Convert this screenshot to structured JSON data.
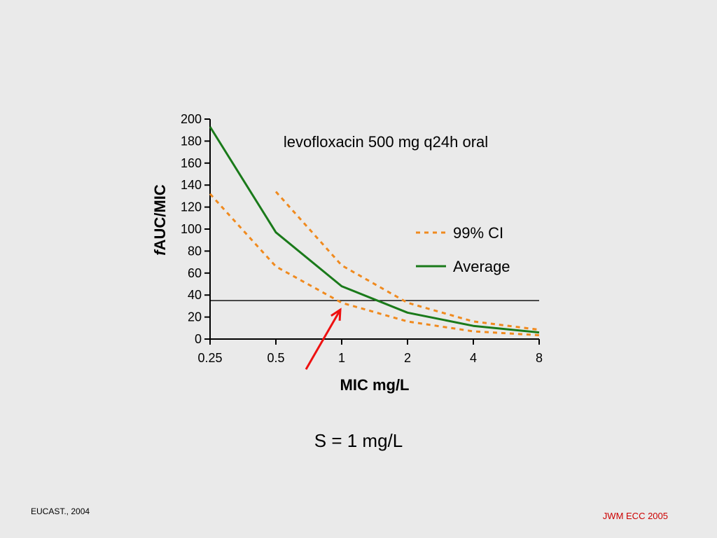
{
  "chart_data": {
    "type": "line",
    "title": "levofloxacin 500 mg q24h oral",
    "xlabel": "MIC mg/L",
    "ylabel_italic": "f",
    "ylabel": "AUC/MIC",
    "x_scale": "log2",
    "categories": [
      "0.25",
      "0.5",
      "1",
      "2",
      "4",
      "8"
    ],
    "x": [
      0.25,
      0.5,
      1,
      2,
      4,
      8
    ],
    "yticks": [
      0,
      20,
      40,
      60,
      80,
      100,
      120,
      140,
      160,
      180,
      200
    ],
    "ylim": [
      0,
      200
    ],
    "grid": false,
    "legend_position": "right",
    "series": [
      {
        "name": "99% CI",
        "style": "dashed",
        "color": "#f08a1e",
        "points": [
          [
            0.5,
            134
          ],
          [
            1,
            67
          ],
          [
            2,
            33
          ],
          [
            4,
            16
          ],
          [
            8,
            8.5
          ]
        ]
      },
      {
        "name": "Average",
        "style": "solid",
        "color": "#1a7a1a",
        "points": [
          [
            0.25,
            193
          ],
          [
            0.5,
            97
          ],
          [
            1,
            48
          ],
          [
            2,
            24
          ],
          [
            4,
            12
          ],
          [
            8,
            6
          ]
        ]
      },
      {
        "name": "",
        "legend": false,
        "style": "dashed",
        "color": "#f08a1e",
        "points": [
          [
            0.25,
            132
          ],
          [
            0.5,
            66
          ],
          [
            1,
            33
          ],
          [
            2,
            16
          ],
          [
            4,
            7
          ],
          [
            8,
            3.5
          ]
        ]
      }
    ],
    "reference_line": {
      "y": 35,
      "color": "#000000"
    },
    "annotation": {
      "type": "arrow",
      "color": "#ee1111",
      "points_to_x": 1,
      "points_to_y": 33
    }
  },
  "caption": "S = 1 mg/L",
  "footer": {
    "source": "EUCAST., 2004",
    "credit": "JWM ECC 2005",
    "credit_color": "#cc0000"
  }
}
